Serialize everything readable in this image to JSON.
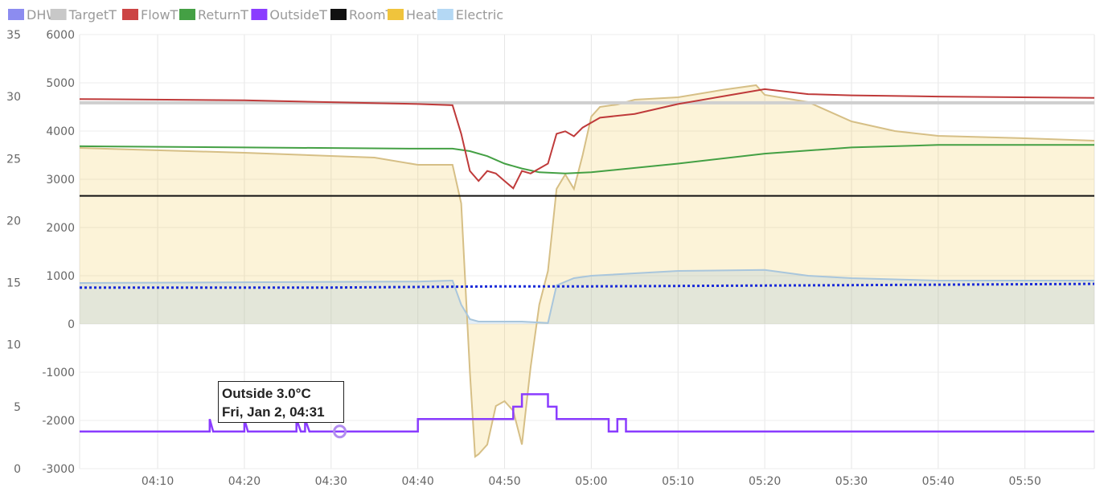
{
  "chart_data": {
    "type": "line",
    "legend": [
      {
        "name": "DHW",
        "color": "#8c8cf0"
      },
      {
        "name": "TargetT",
        "color": "#c8c8c8"
      },
      {
        "name": "FlowT",
        "color": "#cc4444"
      },
      {
        "name": "ReturnT",
        "color": "#44a044"
      },
      {
        "name": "OutsideT",
        "color": "#8a3cff"
      },
      {
        "name": "RoomT",
        "color": "#111111"
      },
      {
        "name": "Heat",
        "color": "#f0c43c"
      },
      {
        "name": "Electric",
        "color": "#b4d8f4"
      }
    ],
    "legend_position": "top-left",
    "grid": true,
    "x_ticks": [
      "04:10",
      "04:20",
      "04:30",
      "04:40",
      "04:50",
      "05:00",
      "05:10",
      "05:20",
      "05:30",
      "05:40",
      "05:50"
    ],
    "y_left_ticks": [
      35,
      30,
      25,
      20,
      15,
      10,
      5,
      0
    ],
    "y_left_range": [
      0,
      35
    ],
    "y_right_ticks": [
      6000,
      5000,
      4000,
      3000,
      2000,
      1000,
      0,
      -1000,
      -2000,
      -3000
    ],
    "y_right_range": [
      -3000,
      6000
    ],
    "x_range": [
      "04:01",
      "05:58"
    ],
    "series": [
      {
        "name": "TargetT",
        "axis": "left",
        "points": [
          [
            "04:01",
            29.5
          ],
          [
            "05:58",
            29.5
          ]
        ]
      },
      {
        "name": "RoomT",
        "axis": "left",
        "points": [
          [
            "04:01",
            22.0
          ],
          [
            "05:58",
            22.0
          ]
        ]
      },
      {
        "name": "DHW",
        "axis": "left",
        "points": [
          [
            "04:01",
            14.6
          ],
          [
            "04:30",
            14.6
          ],
          [
            "04:50",
            14.7
          ],
          [
            "05:00",
            14.7
          ],
          [
            "05:30",
            14.8
          ],
          [
            "05:58",
            14.9
          ]
        ]
      },
      {
        "name": "FlowT",
        "axis": "left",
        "points": [
          [
            "04:01",
            29.8
          ],
          [
            "04:20",
            29.7
          ],
          [
            "04:40",
            29.4
          ],
          [
            "04:44",
            29.3
          ],
          [
            "04:45",
            27.0
          ],
          [
            "04:46",
            24.0
          ],
          [
            "04:47",
            23.2
          ],
          [
            "04:48",
            24.0
          ],
          [
            "04:49",
            23.8
          ],
          [
            "04:50",
            23.2
          ],
          [
            "04:51",
            22.6
          ],
          [
            "04:52",
            24.0
          ],
          [
            "04:53",
            23.8
          ],
          [
            "04:54",
            24.2
          ],
          [
            "04:55",
            24.6
          ],
          [
            "04:56",
            27.0
          ],
          [
            "04:57",
            27.2
          ],
          [
            "04:58",
            26.8
          ],
          [
            "04:59",
            27.5
          ],
          [
            "05:01",
            28.3
          ],
          [
            "05:05",
            28.6
          ],
          [
            "05:10",
            29.4
          ],
          [
            "05:15",
            30.0
          ],
          [
            "05:20",
            30.6
          ],
          [
            "05:25",
            30.2
          ],
          [
            "05:30",
            30.1
          ],
          [
            "05:40",
            30.0
          ],
          [
            "05:58",
            29.9
          ]
        ]
      },
      {
        "name": "ReturnT",
        "axis": "left",
        "points": [
          [
            "04:01",
            26.0
          ],
          [
            "04:20",
            25.9
          ],
          [
            "04:40",
            25.8
          ],
          [
            "04:44",
            25.8
          ],
          [
            "04:46",
            25.6
          ],
          [
            "04:48",
            25.2
          ],
          [
            "04:50",
            24.6
          ],
          [
            "04:52",
            24.2
          ],
          [
            "04:54",
            23.9
          ],
          [
            "04:57",
            23.8
          ],
          [
            "05:00",
            23.9
          ],
          [
            "05:10",
            24.6
          ],
          [
            "05:20",
            25.4
          ],
          [
            "05:30",
            25.9
          ],
          [
            "05:40",
            26.1
          ],
          [
            "05:58",
            26.1
          ]
        ]
      },
      {
        "name": "OutsideT",
        "axis": "left",
        "points": [
          [
            "04:01",
            3.0
          ],
          [
            "04:16",
            3.0
          ],
          [
            "04:16",
            4.0
          ],
          [
            "04:16.4",
            3.0
          ],
          [
            "04:20",
            3.0
          ],
          [
            "04:20",
            4.0
          ],
          [
            "04:20.4",
            3.0
          ],
          [
            "04:26",
            3.0
          ],
          [
            "04:26",
            4.0
          ],
          [
            "04:26.5",
            3.0
          ],
          [
            "04:27",
            3.0
          ],
          [
            "04:27",
            4.0
          ],
          [
            "04:27.5",
            3.0
          ],
          [
            "04:40",
            3.0
          ],
          [
            "04:40",
            4.0
          ],
          [
            "04:51",
            4.0
          ],
          [
            "04:51",
            5.0
          ],
          [
            "04:52",
            5.0
          ],
          [
            "04:52",
            6.0
          ],
          [
            "04:55",
            6.0
          ],
          [
            "04:55",
            5.0
          ],
          [
            "04:56",
            5.0
          ],
          [
            "04:56",
            4.0
          ],
          [
            "05:02",
            4.0
          ],
          [
            "05:02",
            3.0
          ],
          [
            "05:03",
            3.0
          ],
          [
            "05:03",
            4.0
          ],
          [
            "05:04",
            4.0
          ],
          [
            "05:04",
            3.0
          ],
          [
            "05:58",
            3.0
          ]
        ]
      },
      {
        "name": "Heat",
        "axis": "right",
        "points": [
          [
            "04:01",
            3650
          ],
          [
            "04:20",
            3550
          ],
          [
            "04:35",
            3450
          ],
          [
            "04:40",
            3300
          ],
          [
            "04:44",
            3300
          ],
          [
            "04:45",
            2500
          ],
          [
            "04:46",
            -1000
          ],
          [
            "04:46.6",
            -2750
          ],
          [
            "04:47",
            -2700
          ],
          [
            "04:48",
            -2500
          ],
          [
            "04:49",
            -1700
          ],
          [
            "04:50",
            -1600
          ],
          [
            "04:51",
            -1800
          ],
          [
            "04:52",
            -2500
          ],
          [
            "04:53",
            -900
          ],
          [
            "04:54",
            400
          ],
          [
            "04:55",
            1100
          ],
          [
            "04:56",
            2800
          ],
          [
            "04:57",
            3100
          ],
          [
            "04:58",
            2800
          ],
          [
            "04:59",
            3500
          ],
          [
            "05:00",
            4300
          ],
          [
            "05:01",
            4500
          ],
          [
            "05:03",
            4550
          ],
          [
            "05:05",
            4650
          ],
          [
            "05:10",
            4700
          ],
          [
            "05:15",
            4850
          ],
          [
            "05:19",
            4950
          ],
          [
            "05:20",
            4750
          ],
          [
            "05:25",
            4600
          ],
          [
            "05:30",
            4200
          ],
          [
            "05:35",
            4000
          ],
          [
            "05:40",
            3900
          ],
          [
            "05:50",
            3850
          ],
          [
            "05:58",
            3800
          ]
        ]
      },
      {
        "name": "Electric",
        "axis": "right",
        "points": [
          [
            "04:01",
            850
          ],
          [
            "04:40",
            880
          ],
          [
            "04:44",
            900
          ],
          [
            "04:45",
            400
          ],
          [
            "04:46",
            100
          ],
          [
            "04:47",
            50
          ],
          [
            "04:52",
            50
          ],
          [
            "04:55",
            20
          ],
          [
            "04:56",
            800
          ],
          [
            "04:58",
            950
          ],
          [
            "05:00",
            1000
          ],
          [
            "05:10",
            1100
          ],
          [
            "05:20",
            1120
          ],
          [
            "05:25",
            1000
          ],
          [
            "05:30",
            950
          ],
          [
            "05:40",
            900
          ],
          [
            "05:58",
            900
          ]
        ]
      }
    ],
    "tooltip": {
      "line1": "Outside 3.0°C",
      "line2": "Fri, Jan 2, 04:31",
      "time": "04:31",
      "value": 3.0
    }
  }
}
